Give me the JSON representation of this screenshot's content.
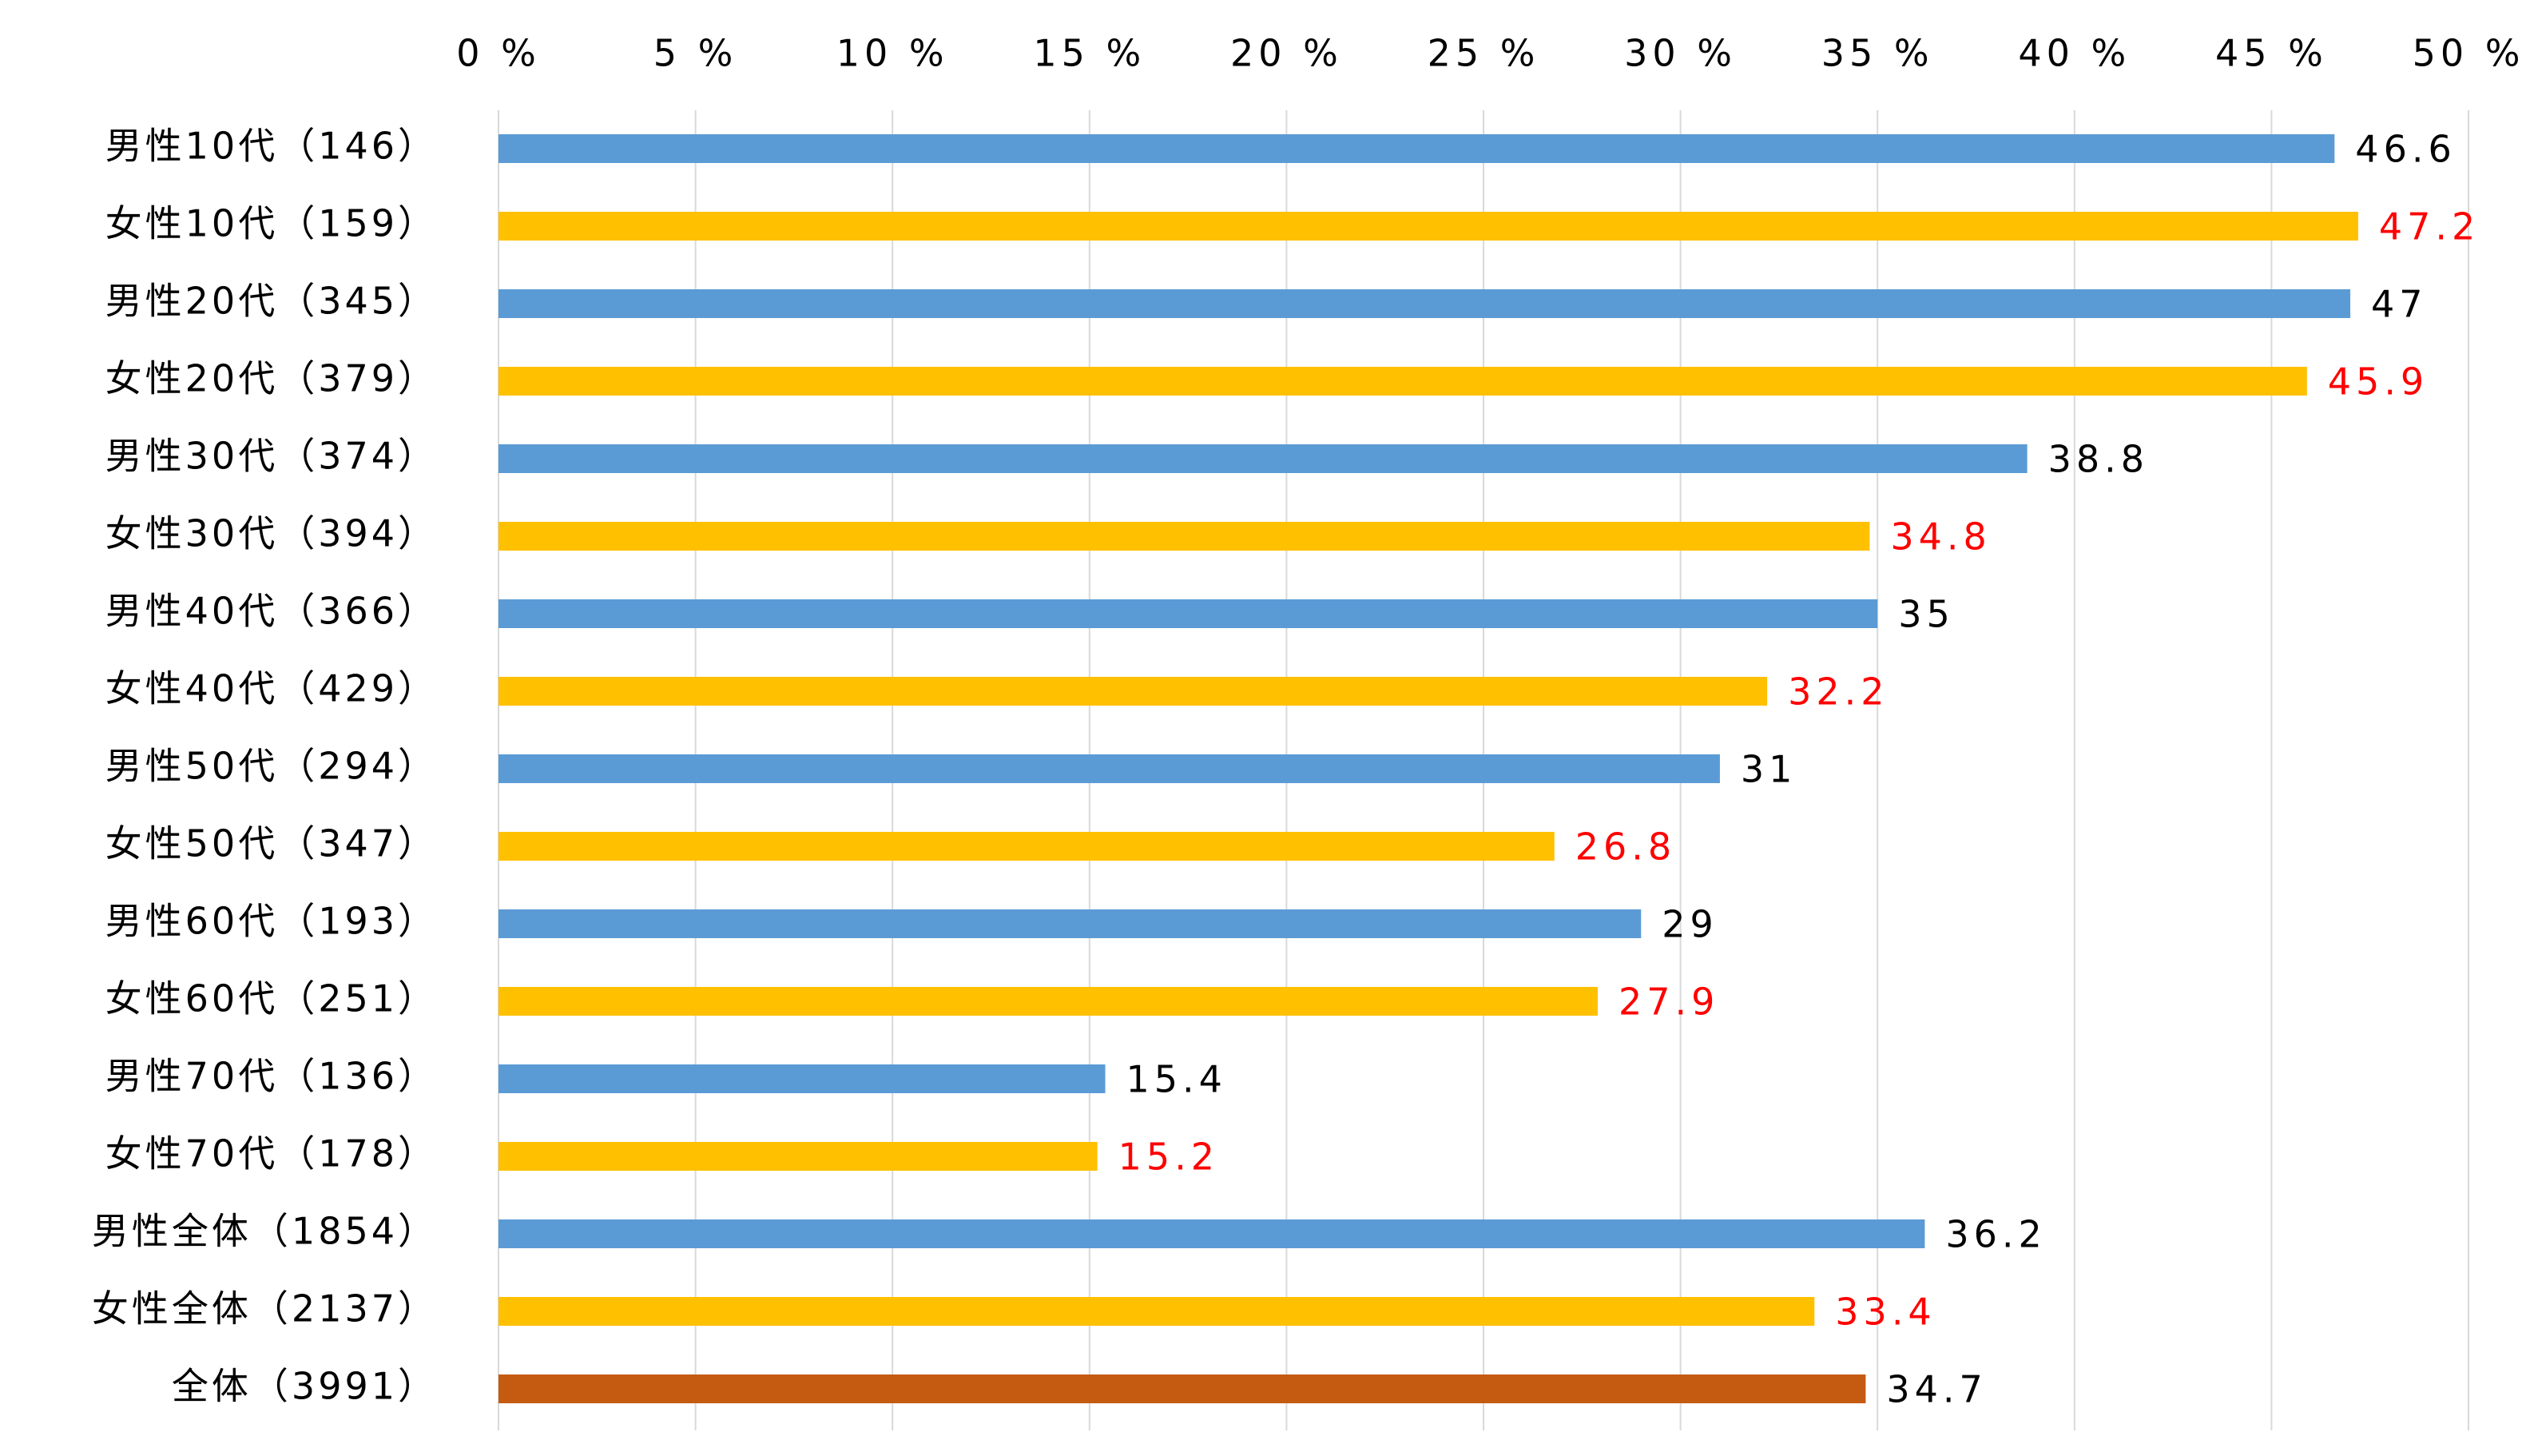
{
  "chart_data": {
    "type": "bar",
    "orientation": "horizontal",
    "title": "",
    "xlabel": "",
    "ylabel": "",
    "xlim": [
      0,
      50
    ],
    "x_ticks": [
      0,
      5,
      10,
      15,
      20,
      25,
      30,
      35,
      40,
      45,
      50
    ],
    "x_tick_labels": [
      "0 %",
      "5 %",
      "10 %",
      "15 %",
      "20 %",
      "25 %",
      "30 %",
      "35 %",
      "40 %",
      "45 %",
      "50 %"
    ],
    "x_axis_position": "top",
    "grid": true,
    "legend": "none",
    "categories": [
      "男性10代（146）",
      "女性10代（159）",
      "男性20代（345）",
      "女性20代（379）",
      "男性30代（374）",
      "女性30代（394）",
      "男性40代（366）",
      "女性40代（429）",
      "男性50代（294）",
      "女性50代（347）",
      "男性60代（193）",
      "女性60代（251）",
      "男性70代（136）",
      "女性70代（178）",
      "男性全体（1854）",
      "女性全体（2137）",
      "全体（3991）"
    ],
    "values": [
      46.6,
      47.2,
      47,
      45.9,
      38.8,
      34.8,
      35,
      32.2,
      31,
      26.8,
      29,
      27.9,
      15.4,
      15.2,
      36.2,
      33.4,
      34.7
    ],
    "value_labels": [
      "46.6",
      "47.2",
      "47",
      "45.9",
      "38.8",
      "34.8",
      "35",
      "32.2",
      "31",
      "26.8",
      "29",
      "27.9",
      "15.4",
      "15.2",
      "36.2",
      "33.4",
      "34.7"
    ],
    "groups": [
      "male",
      "female",
      "male",
      "female",
      "male",
      "female",
      "male",
      "female",
      "male",
      "female",
      "male",
      "female",
      "male",
      "female",
      "male",
      "female",
      "total"
    ],
    "colors": {
      "male": "#5b9bd5",
      "female": "#ffc000",
      "total": "#c55a11",
      "male_label": "#000000",
      "female_label": "#ff0000",
      "total_label": "#000000",
      "grid": "#d9d9d9"
    }
  }
}
